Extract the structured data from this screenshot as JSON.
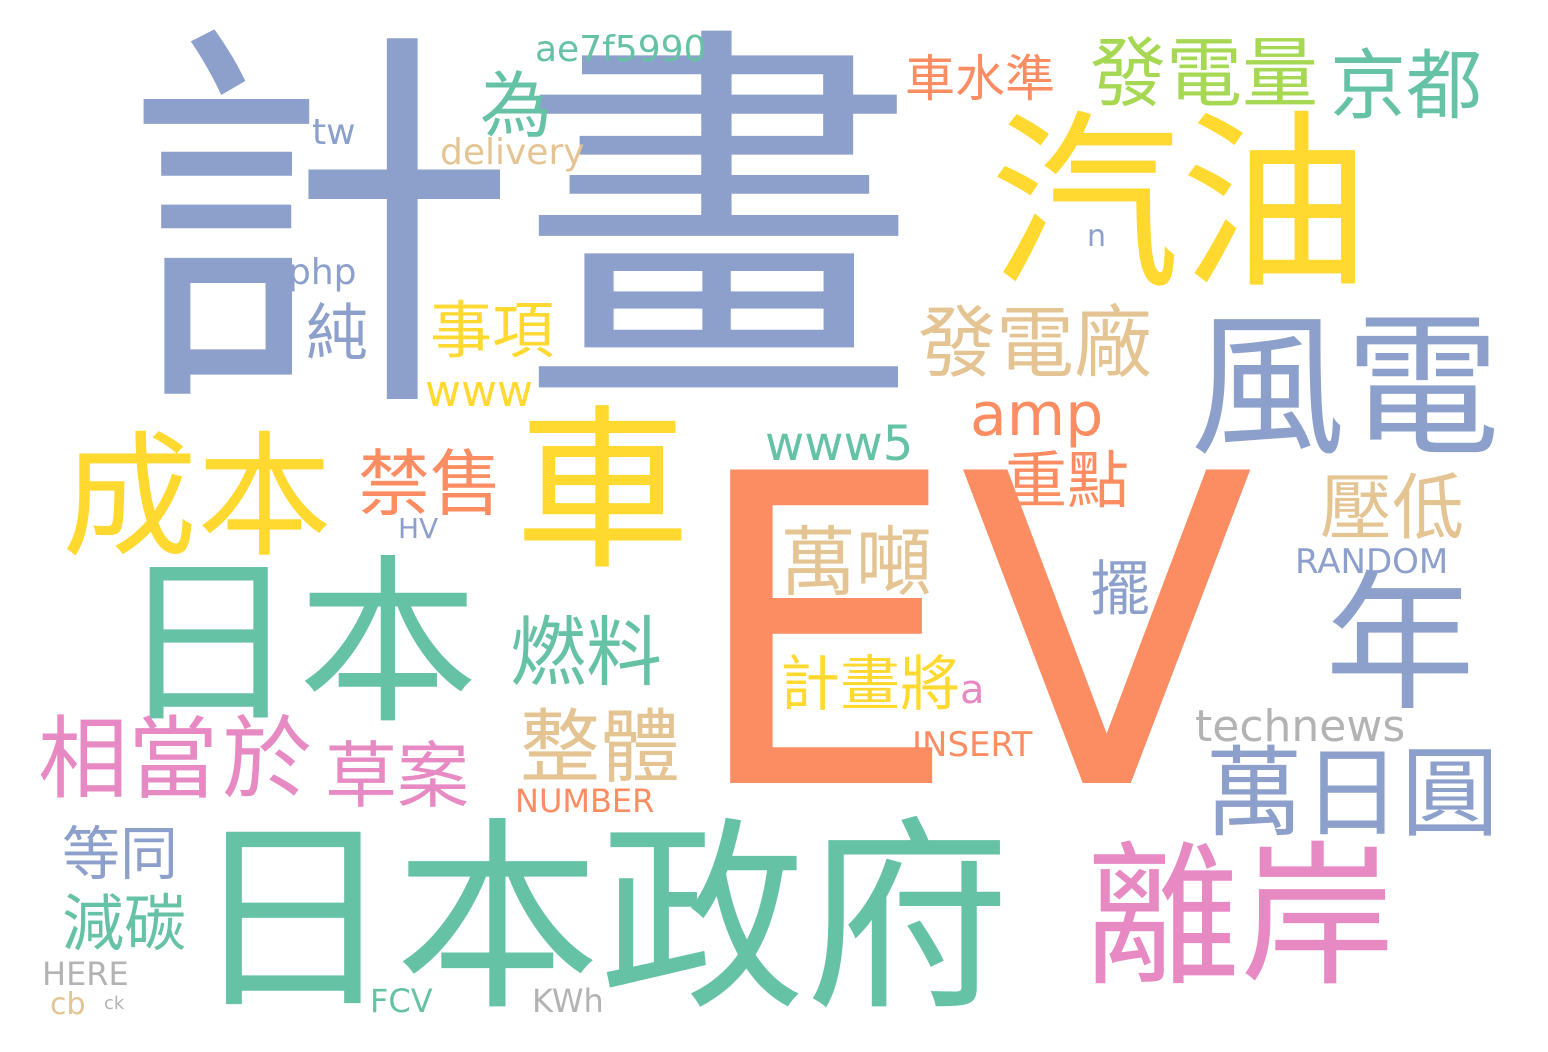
{
  "palette": {
    "blue": "#8da0cb",
    "orange": "#fc8d62",
    "green": "#66c2a5",
    "yellow": "#ffd92f",
    "pink": "#e78ac3",
    "tan": "#e5c494",
    "lime": "#a6d854",
    "gray": "#b3b3b3"
  },
  "words": [
    "計畫",
    "EV",
    "日本政府",
    "日本",
    "汽油",
    "車",
    "風電",
    "成本",
    "年",
    "離岸",
    "萬日圓",
    "相當",
    "於",
    "發電量",
    "京都",
    "為",
    "車水準",
    "發電廠",
    "amp",
    "禁售",
    "純",
    "事項",
    "燃料",
    "萬噸",
    "整體",
    "重點",
    "壓低",
    "草案",
    "www5",
    "technews",
    "www",
    "計畫將",
    "擺",
    "RANDOM",
    "INSERT",
    "NUMBER",
    "ae7f5990",
    "delivery",
    "php",
    "tw",
    "等同",
    "減碳",
    "HERE",
    "FCV",
    "KWh",
    "cb",
    "ck",
    "HV",
    "n",
    "a"
  ]
}
